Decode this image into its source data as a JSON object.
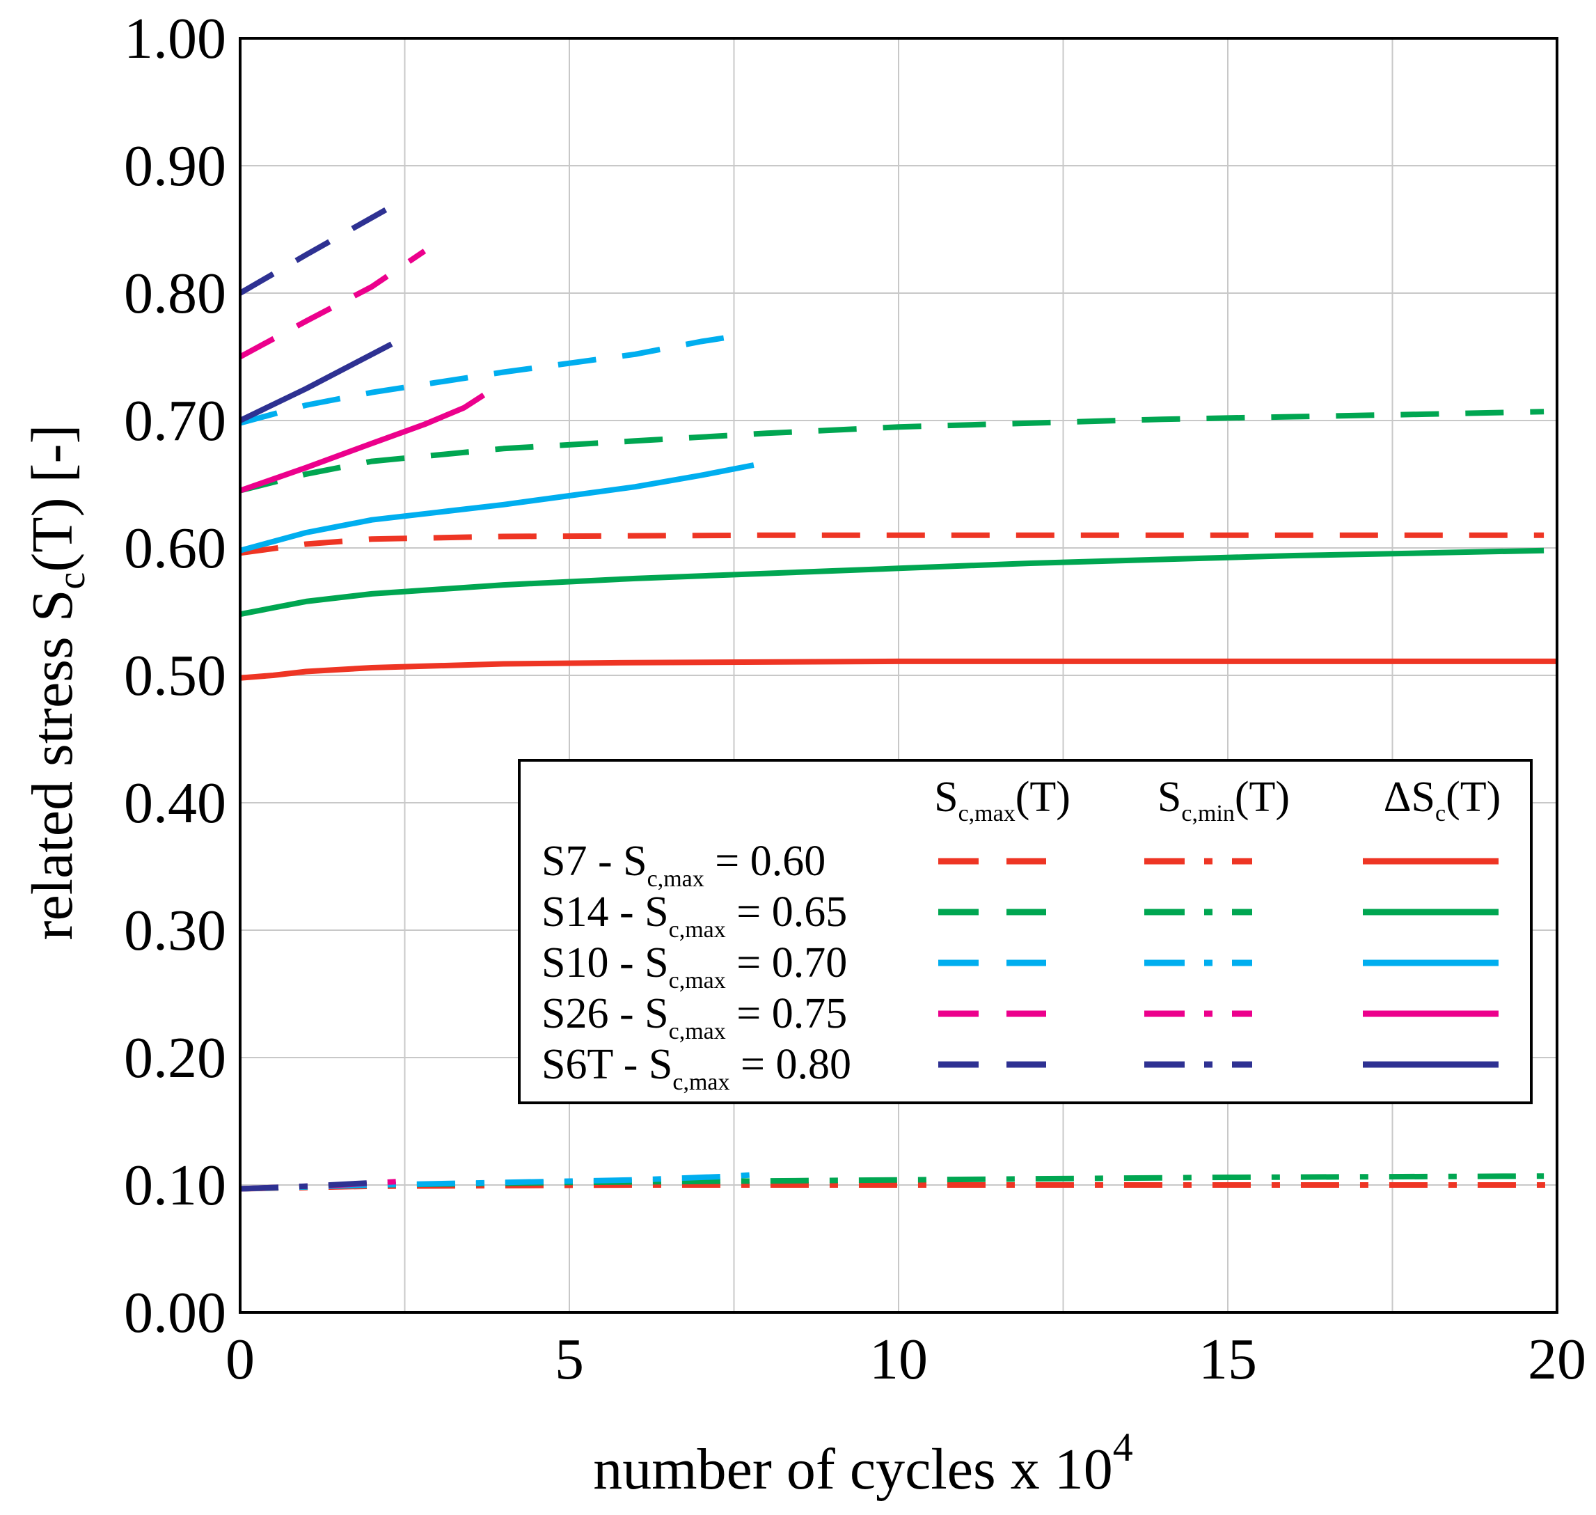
{
  "chart_data": {
    "type": "line",
    "xlabel": "number of cycles x 10",
    "xlabel_exponent": "4",
    "ylabel": {
      "prefix": "related stress S",
      "subscript": "c",
      "suffix": "(T)  [-]"
    },
    "xlim": [
      0,
      20
    ],
    "ylim": [
      0,
      1
    ],
    "x_ticks": [
      0,
      5,
      10,
      15,
      20
    ],
    "x_tick_labels": [
      "0",
      "5",
      "10",
      "15",
      "20"
    ],
    "y_ticks": [
      0,
      0.1,
      0.2,
      0.3,
      0.4,
      0.5,
      0.6,
      0.7,
      0.8,
      0.9,
      1.0
    ],
    "y_tick_labels": [
      "0.00",
      "0.10",
      "0.20",
      "0.30",
      "0.40",
      "0.50",
      "0.60",
      "0.70",
      "0.80",
      "0.90",
      "1.00"
    ],
    "x_grid": [
      0,
      2.5,
      5,
      7.5,
      10,
      12.5,
      15,
      17.5,
      20
    ],
    "y_grid": [
      0,
      0.1,
      0.2,
      0.3,
      0.4,
      0.5,
      0.6,
      0.7,
      0.8,
      0.9,
      1.0
    ],
    "grid": true,
    "legend": {
      "placement": "bottom-right",
      "column_headers": [
        {
          "main": "S",
          "sub": "c,max",
          "tail": "(T)",
          "style": "dashed"
        },
        {
          "main": "S",
          "sub": "c,min",
          "tail": "(T)",
          "style": "dashdot"
        },
        {
          "main": "ΔS",
          "sub": "c",
          "tail": "(T)",
          "style": "solid"
        }
      ]
    },
    "series": [
      {
        "name": "S7",
        "label_prefix": "S7 - S",
        "label_sub": "c,max",
        "label_value": " = 0.60",
        "color": "#ee3524",
        "s_max": [
          [
            0,
            0.596
          ],
          [
            1,
            0.603
          ],
          [
            2,
            0.607
          ],
          [
            4,
            0.609
          ],
          [
            8,
            0.61
          ],
          [
            12,
            0.61
          ],
          [
            16,
            0.61
          ],
          [
            19.8,
            0.61
          ]
        ],
        "s_min": [
          [
            0,
            0.097
          ],
          [
            2,
            0.099
          ],
          [
            6,
            0.1
          ],
          [
            10,
            0.1
          ],
          [
            15,
            0.1
          ],
          [
            20,
            0.1
          ]
        ],
        "delta": [
          [
            0,
            0.498
          ],
          [
            0.5,
            0.5
          ],
          [
            1,
            0.503
          ],
          [
            2,
            0.506
          ],
          [
            4,
            0.509
          ],
          [
            6,
            0.51
          ],
          [
            10,
            0.511
          ],
          [
            20,
            0.511
          ]
        ]
      },
      {
        "name": "S14",
        "label_prefix": "S14 - S",
        "label_sub": "c,max",
        "label_value": " = 0.65",
        "color": "#00a651",
        "s_max": [
          [
            0,
            0.645
          ],
          [
            1,
            0.658
          ],
          [
            2,
            0.668
          ],
          [
            4,
            0.678
          ],
          [
            6,
            0.684
          ],
          [
            8,
            0.69
          ],
          [
            10,
            0.695
          ],
          [
            12,
            0.698
          ],
          [
            14,
            0.701
          ],
          [
            16,
            0.703
          ],
          [
            18,
            0.705
          ],
          [
            19.8,
            0.707
          ]
        ],
        "s_min": [
          [
            0,
            0.097
          ],
          [
            2,
            0.1
          ],
          [
            5,
            0.102
          ],
          [
            10,
            0.104
          ],
          [
            15,
            0.106
          ],
          [
            19.8,
            0.107
          ]
        ],
        "delta": [
          [
            0,
            0.548
          ],
          [
            1,
            0.558
          ],
          [
            2,
            0.564
          ],
          [
            4,
            0.571
          ],
          [
            6,
            0.576
          ],
          [
            8,
            0.58
          ],
          [
            10,
            0.584
          ],
          [
            12,
            0.588
          ],
          [
            14,
            0.591
          ],
          [
            16,
            0.594
          ],
          [
            18,
            0.596
          ],
          [
            19.8,
            0.598
          ]
        ]
      },
      {
        "name": "S10",
        "label_prefix": "S10 - S",
        "label_sub": "c,max",
        "label_value": " = 0.70",
        "color": "#00aeef",
        "s_max": [
          [
            0,
            0.698
          ],
          [
            1,
            0.712
          ],
          [
            2,
            0.722
          ],
          [
            3,
            0.73
          ],
          [
            4,
            0.738
          ],
          [
            5,
            0.745
          ],
          [
            6,
            0.752
          ],
          [
            7,
            0.762
          ],
          [
            7.5,
            0.766
          ]
        ],
        "s_min": [
          [
            0,
            0.097
          ],
          [
            2,
            0.1
          ],
          [
            4,
            0.102
          ],
          [
            6,
            0.104
          ],
          [
            7.5,
            0.107
          ],
          [
            7.8,
            0.108
          ]
        ],
        "delta": [
          [
            0,
            0.598
          ],
          [
            1,
            0.612
          ],
          [
            2,
            0.622
          ],
          [
            3,
            0.628
          ],
          [
            4,
            0.634
          ],
          [
            5,
            0.641
          ],
          [
            6,
            0.648
          ],
          [
            7,
            0.657
          ],
          [
            7.8,
            0.665
          ]
        ]
      },
      {
        "name": "S26",
        "label_prefix": "S26 - S",
        "label_sub": "c,max",
        "label_value": " = 0.75",
        "color": "#ec008c",
        "s_max": [
          [
            0,
            0.75
          ],
          [
            1,
            0.778
          ],
          [
            2,
            0.805
          ],
          [
            2.8,
            0.833
          ]
        ],
        "s_min": [
          [
            0,
            0.097
          ],
          [
            1.5,
            0.1
          ],
          [
            2.5,
            0.103
          ]
        ],
        "delta": [
          [
            0,
            0.645
          ],
          [
            1,
            0.663
          ],
          [
            2,
            0.682
          ],
          [
            2.8,
            0.697
          ],
          [
            3.4,
            0.71
          ],
          [
            3.7,
            0.72
          ]
        ]
      },
      {
        "name": "S6T",
        "label_prefix": "S6T - S",
        "label_sub": "c,max",
        "label_value": " = 0.80",
        "color": "#2e3192",
        "s_max": [
          [
            0,
            0.8
          ],
          [
            1,
            0.83
          ],
          [
            2.3,
            0.868
          ]
        ],
        "s_min": [
          [
            0,
            0.097
          ],
          [
            1,
            0.099
          ],
          [
            2.1,
            0.102
          ]
        ],
        "delta": [
          [
            0,
            0.7
          ],
          [
            1,
            0.725
          ],
          [
            2.3,
            0.76
          ]
        ]
      }
    ]
  }
}
